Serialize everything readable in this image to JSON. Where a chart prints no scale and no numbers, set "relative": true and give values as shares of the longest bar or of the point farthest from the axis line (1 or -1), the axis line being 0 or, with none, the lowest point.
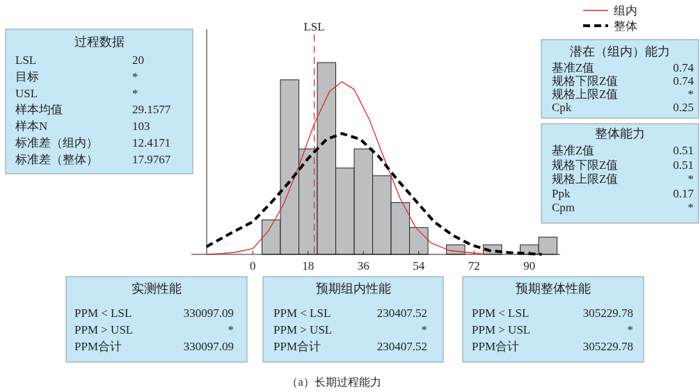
{
  "chart_data": [
    {
      "type": "histogram",
      "relative": true,
      "bins": [
        3,
        9,
        15,
        21,
        27,
        33,
        39,
        45,
        51,
        57,
        63,
        69,
        75,
        81,
        87,
        93,
        99
      ],
      "values": [
        0.18,
        0.91,
        0.55,
        1,
        0.45,
        0.55,
        0.41,
        0.27,
        0.14,
        0,
        0.05,
        0,
        0.05,
        0,
        0.05,
        0.09
      ],
      "color": "#bcbec0",
      "xlim": [
        -15,
        100
      ],
      "xticks": [
        0,
        18,
        36,
        54,
        72,
        90
      ],
      "tick_labels": "x",
      "legend": "top right",
      "series": [
        {
          "name": "组内",
          "type": "line",
          "color": "#e8262a",
          "line_style": "solid",
          "x": [
            -15,
            -10,
            -6,
            0,
            5,
            10,
            15,
            20,
            25,
            29,
            33,
            38,
            43,
            48,
            53,
            58,
            64,
            70,
            76
          ],
          "values": [
            0,
            0.005,
            0.01,
            0.03,
            0.12,
            0.26,
            0.46,
            0.68,
            0.85,
            0.9,
            0.86,
            0.7,
            0.49,
            0.29,
            0.14,
            0.06,
            0.02,
            0.01,
            0
          ]
        },
        {
          "name": "整体",
          "type": "line",
          "color": "#000000",
          "line_style": "dashed",
          "x": [
            -15,
            -14,
            -6,
            0,
            6,
            12,
            18,
            24,
            29,
            35,
            41,
            47,
            53,
            59,
            65,
            71,
            77,
            83,
            94
          ],
          "values": [
            0.04,
            0.05,
            0.12,
            0.17,
            0.27,
            0.38,
            0.5,
            0.6,
            0.63,
            0.6,
            0.51,
            0.39,
            0.28,
            0.17,
            0.1,
            0.05,
            0.02,
            0.01,
            0
          ]
        }
      ],
      "ref_lines": [
        {
          "axis": "x",
          "value": 20,
          "label": "LSL",
          "color": "#e8262a",
          "line_style": "dashed"
        }
      ],
      "annotations": [
        "（a）长期过程能力"
      ]
    },
    {
      "type": "other",
      "title": "过程数据",
      "annotations": [
        "LSL",
        "20",
        "目标",
        "*",
        "USL",
        "*",
        "样本均值",
        "29.1577",
        "样本N",
        "103",
        "标准差（组内）",
        "12.4171",
        "标准差（整体）",
        "17.9767"
      ]
    },
    {
      "type": "other",
      "title": "潜在（组内）能力",
      "annotations": [
        "基准Z值",
        "0.74",
        "规格下限Z值",
        "0.74",
        "规格上限Z值",
        "*",
        "Cpk",
        "0.25"
      ]
    },
    {
      "type": "other",
      "title": "整体能力",
      "annotations": [
        "基准Z值",
        "0.51",
        "规格下限Z值",
        "0.51",
        "规格上限Z值",
        "*",
        "Ppk",
        "0.17",
        "Cpm",
        "*"
      ]
    },
    {
      "type": "other",
      "title": "实测性能",
      "annotations": [
        "PPM < LSL",
        "330097.09",
        "PPM > USL",
        "*",
        "PPM合计",
        "330097.09"
      ]
    },
    {
      "type": "other",
      "title": "预期组内性能",
      "annotations": [
        "PPM < LSL",
        "230407.52",
        "PPM > USL",
        "*",
        "PPM合计",
        "230407.52"
      ]
    },
    {
      "type": "other",
      "title": "预期整体性能",
      "annotations": [
        "PPM < LSL",
        "305229.78",
        "PPM > USL",
        "*",
        "PPM合计",
        "305229.78"
      ]
    }
  ]
}
